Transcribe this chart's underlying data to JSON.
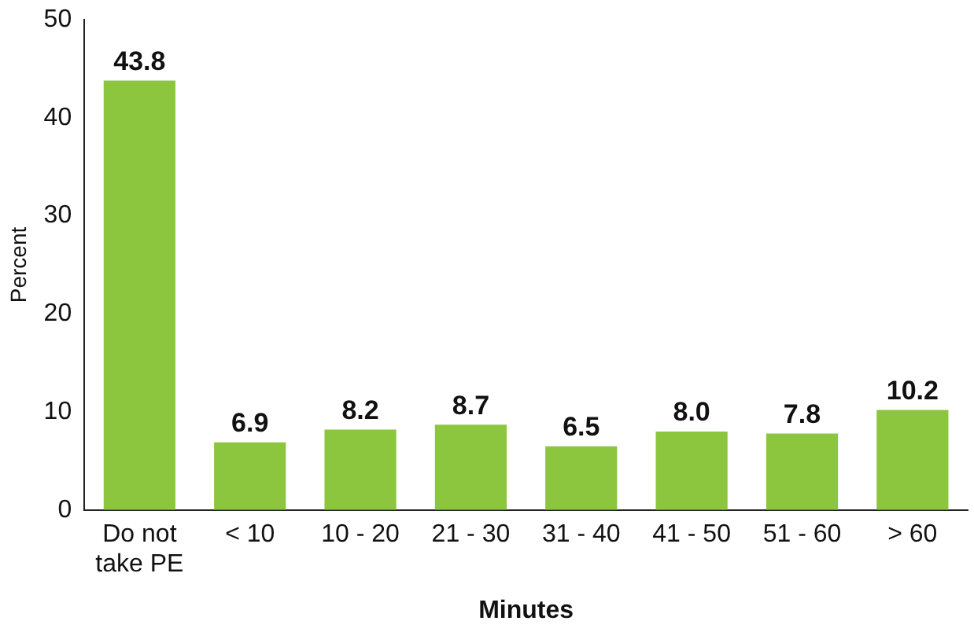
{
  "chart_data": {
    "type": "bar",
    "xlabel": "Minutes",
    "ylabel": "Percent",
    "categories": [
      "Do not take PE",
      "< 10",
      "10 - 20",
      "21 - 30",
      "31 - 40",
      "41 - 50",
      "51 - 60",
      "> 60"
    ],
    "values": [
      43.8,
      6.9,
      8.2,
      8.7,
      6.5,
      8.0,
      7.8,
      10.2
    ],
    "value_labels": [
      "43.8",
      "6.9",
      "8.2",
      "8.7",
      "6.5",
      "8.0",
      "7.8",
      "10.2"
    ],
    "color": "#8cc63f",
    "ylim": [
      0,
      50
    ],
    "yticks": [
      0,
      10,
      20,
      30,
      40,
      50
    ],
    "grid": false,
    "legend": false
  }
}
